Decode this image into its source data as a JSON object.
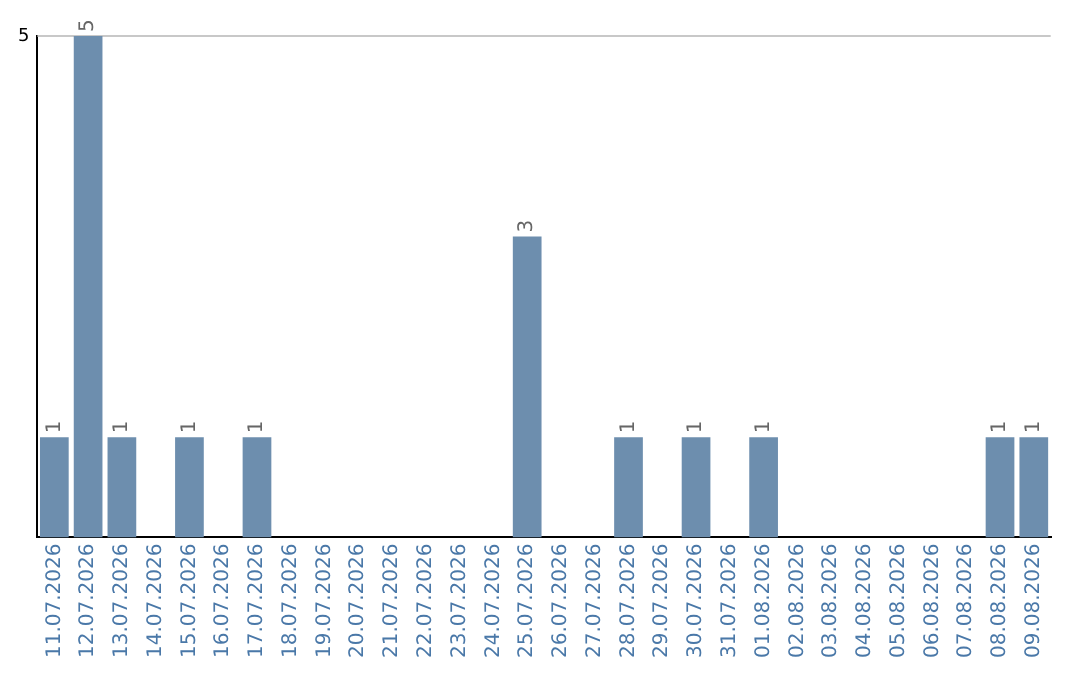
{
  "chart_data": {
    "type": "bar",
    "categories": [
      "11.07.2026",
      "12.07.2026",
      "13.07.2026",
      "14.07.2026",
      "15.07.2026",
      "16.07.2026",
      "17.07.2026",
      "18.07.2026",
      "19.07.2026",
      "20.07.2026",
      "21.07.2026",
      "22.07.2026",
      "23.07.2026",
      "24.07.2026",
      "25.07.2026",
      "26.07.2026",
      "27.07.2026",
      "28.07.2026",
      "29.07.2026",
      "30.07.2026",
      "31.07.2026",
      "01.08.2026",
      "02.08.2026",
      "03.08.2026",
      "04.08.2026",
      "05.08.2026",
      "06.08.2026",
      "07.08.2026",
      "08.08.2026",
      "09.08.2026"
    ],
    "values": [
      1,
      5,
      1,
      0,
      1,
      0,
      1,
      0,
      0,
      0,
      0,
      0,
      0,
      0,
      3,
      0,
      0,
      1,
      0,
      1,
      0,
      1,
      0,
      0,
      0,
      0,
      0,
      0,
      1,
      1
    ],
    "value_labels": [
      "1",
      "5",
      "1",
      null,
      "1",
      null,
      "1",
      null,
      null,
      null,
      null,
      null,
      null,
      null,
      "3",
      null,
      null,
      "1",
      null,
      "1",
      null,
      "1",
      null,
      null,
      null,
      null,
      null,
      null,
      "1",
      "1"
    ],
    "color": "#6d8eae",
    "ylim": [
      0,
      5
    ],
    "yticks": [
      5
    ],
    "legend": false,
    "ref_lines": [
      {
        "axis": "y",
        "value": 5,
        "color": "#c8c8c8"
      }
    ]
  }
}
